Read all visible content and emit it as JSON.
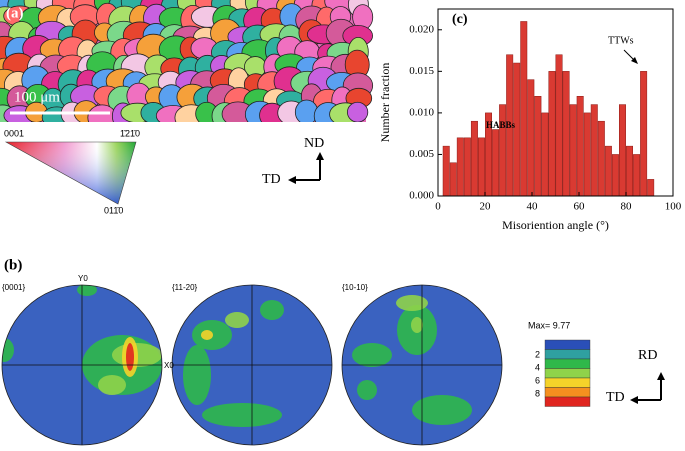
{
  "chart_data": {
    "type": "histogram",
    "title": "(c)",
    "xlabel": "Misoriention angle (°)",
    "ylabel": "Number fraction",
    "bins": [
      2,
      5,
      8,
      11,
      14,
      17,
      20,
      23,
      26,
      29,
      32,
      35,
      38,
      41,
      44,
      47,
      50,
      53,
      56,
      59,
      62,
      65,
      68,
      71,
      74,
      77,
      80,
      83,
      86,
      89,
      92
    ],
    "values": [
      0.006,
      0.004,
      0.007,
      0.007,
      0.009,
      0.007,
      0.01,
      0.008,
      0.011,
      0.017,
      0.016,
      0.021,
      0.014,
      0.012,
      0.01,
      0.015,
      0.017,
      0.015,
      0.011,
      0.012,
      0.01,
      0.011,
      0.009,
      0.006,
      0.005,
      0.011,
      0.006,
      0.005,
      0.015,
      0.002
    ],
    "color": "#d93a32",
    "xlim": [
      0,
      100
    ],
    "xticks": [
      0,
      20,
      40,
      60,
      80,
      100
    ],
    "ylim": [
      0,
      0.0225
    ],
    "yticks": [
      {
        "value": 0,
        "label": "0.000"
      },
      {
        "value": 0.005,
        "label": "0.005"
      },
      {
        "value": 0.01,
        "label": "0.010"
      },
      {
        "value": 0.015,
        "label": "0.015"
      },
      {
        "value": 0.02,
        "label": "0.020"
      }
    ],
    "annotations": [
      "HABBs",
      "TTWs"
    ]
  },
  "panel_a": {
    "label": "(a)",
    "scale": "100 μm",
    "ipf": [
      "0001",
      "1̄21̄0",
      "011̄0"
    ],
    "axes": [
      "ND",
      "TD"
    ]
  },
  "panel_b": {
    "label": "(b)",
    "figures": [
      "{0001}",
      "{11-20}",
      "{10-10}"
    ],
    "y_axis": "Y0",
    "x_axis": "X0",
    "colorbar": {
      "max_label": "Max= 9.77",
      "ticks": [
        2,
        4,
        6,
        8
      ]
    },
    "axes": [
      "RD",
      "TD"
    ]
  }
}
